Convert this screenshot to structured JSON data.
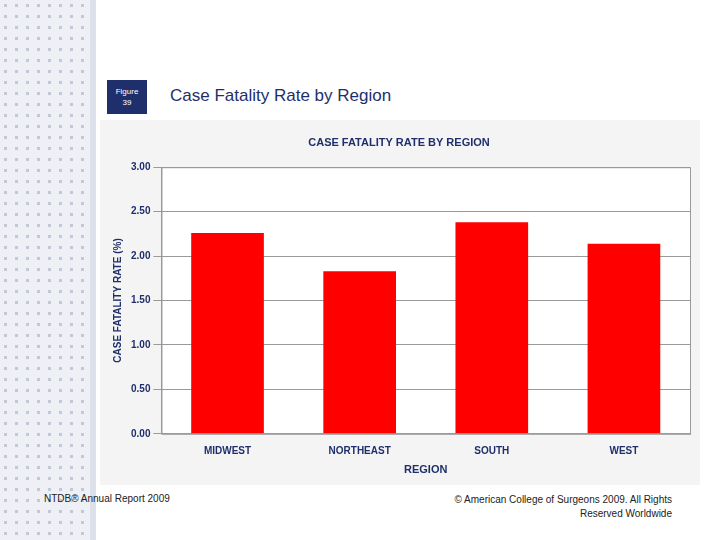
{
  "slide": {
    "figure_label": "Figure 39",
    "title": "Case Fatality Rate by Region",
    "footer_left": "NTDB® Annual Report 2009",
    "footer_right": "© American College of Surgeons 2009. All Rights Reserved Worldwide"
  },
  "chart_data": {
    "type": "bar",
    "title": "CASE FATALITY RATE BY REGION",
    "xlabel": "REGION",
    "ylabel": "CASE FATALITY RATE (%)",
    "categories": [
      "MIDWEST",
      "NORTHEAST",
      "SOUTH",
      "WEST"
    ],
    "values": [
      2.26,
      1.83,
      2.38,
      2.14
    ],
    "color": "#ff0000",
    "ylim": [
      0,
      3
    ],
    "yticks": [
      {
        "value": 0,
        "label": "0.00"
      },
      {
        "value": 0.5,
        "label": "0.50"
      },
      {
        "value": 1,
        "label": "1.00"
      },
      {
        "value": 1.5,
        "label": "1.50"
      },
      {
        "value": 2,
        "label": "2.00"
      },
      {
        "value": 2.5,
        "label": "2.50"
      },
      {
        "value": 3,
        "label": "3.00"
      }
    ],
    "grid": true
  }
}
